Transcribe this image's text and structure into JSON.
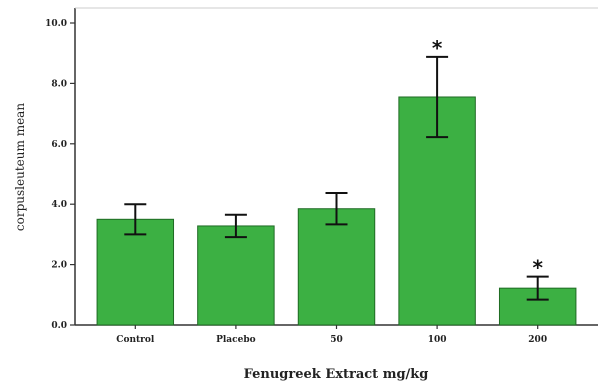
{
  "chart_data": {
    "type": "bar",
    "categories": [
      "Control",
      "Placebo",
      "50",
      "100",
      "200"
    ],
    "values": [
      3.5,
      3.28,
      3.85,
      7.55,
      1.22
    ],
    "error": [
      0.5,
      0.37,
      0.52,
      1.33,
      0.38
    ],
    "significance": [
      "",
      "",
      "",
      "*",
      "*"
    ],
    "xlabel": "Fenugreek Extract  mg/kg",
    "ylabel": "corpusleuteum mean",
    "ylim": [
      0,
      10
    ],
    "yticks": [
      {
        "value": 0,
        "label": "0.0"
      },
      {
        "value": 2,
        "label": "2.0"
      },
      {
        "value": 4,
        "label": "4.0"
      },
      {
        "value": 6,
        "label": "6.0"
      },
      {
        "value": 8,
        "label": "8.0"
      },
      {
        "value": 10,
        "label": "10.0"
      }
    ],
    "grid": false,
    "bar_color": "#3cb043",
    "bar_edge_color": "#1f6b24",
    "error_bar_color": "#111111"
  }
}
